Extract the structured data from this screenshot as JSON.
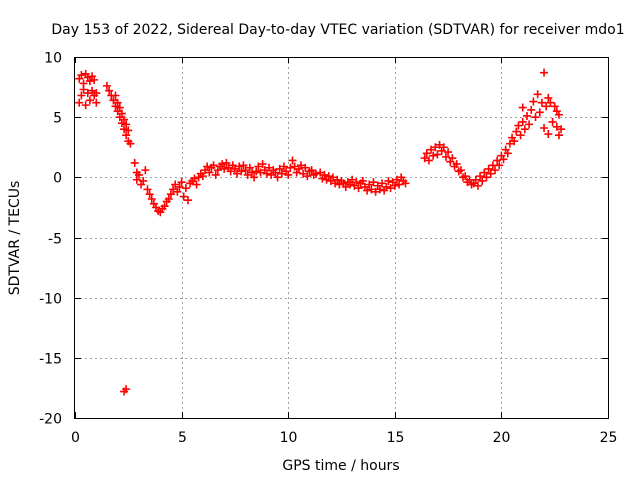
{
  "chart_data": {
    "type": "scatter",
    "title": "Day 153 of 2022, Sidereal Day-to-day VTEC variation (SDTVAR) for receiver mdo1",
    "xlabel": "GPS time / hours",
    "ylabel": "SDTVAR / TECUs",
    "xlim": [
      0,
      25
    ],
    "ylim": [
      -20,
      10
    ],
    "xticks": [
      0,
      5,
      10,
      15,
      20,
      25
    ],
    "yticks": [
      -20,
      -15,
      -10,
      -5,
      0,
      5,
      10
    ],
    "xtick_labels": [
      "0",
      "5",
      "10",
      "15",
      "20",
      "25"
    ],
    "ytick_labels": [
      "-20",
      "-15",
      "-10",
      "-5",
      "0",
      "5",
      "10"
    ],
    "grid": true,
    "marker": "+",
    "color": "#ff0000",
    "series": [
      {
        "name": "SDTVAR",
        "points": [
          [
            0.2,
            8.2
          ],
          [
            0.3,
            8.5
          ],
          [
            0.4,
            7.8
          ],
          [
            0.5,
            8.6
          ],
          [
            0.6,
            8.3
          ],
          [
            0.7,
            8.0
          ],
          [
            0.8,
            8.4
          ],
          [
            0.9,
            8.1
          ],
          [
            0.2,
            6.2
          ],
          [
            0.3,
            6.8
          ],
          [
            0.4,
            7.3
          ],
          [
            0.5,
            6.0
          ],
          [
            0.6,
            7.0
          ],
          [
            0.7,
            6.4
          ],
          [
            0.8,
            7.2
          ],
          [
            0.9,
            6.8
          ],
          [
            1.0,
            7.0
          ],
          [
            1.0,
            6.2
          ],
          [
            1.5,
            7.6
          ],
          [
            1.6,
            7.2
          ],
          [
            1.7,
            6.8
          ],
          [
            1.8,
            6.4
          ],
          [
            1.9,
            5.9
          ],
          [
            1.9,
            6.8
          ],
          [
            2.0,
            5.5
          ],
          [
            2.0,
            6.2
          ],
          [
            2.1,
            5.0
          ],
          [
            2.1,
            5.8
          ],
          [
            2.2,
            4.5
          ],
          [
            2.2,
            5.3
          ],
          [
            2.3,
            4.0
          ],
          [
            2.3,
            4.8
          ],
          [
            2.4,
            3.5
          ],
          [
            2.4,
            4.4
          ],
          [
            2.5,
            3.0
          ],
          [
            2.5,
            3.9
          ],
          [
            2.6,
            2.8
          ],
          [
            2.3,
            -17.8
          ],
          [
            2.4,
            -17.6
          ],
          [
            2.8,
            1.2
          ],
          [
            2.9,
            0.4
          ],
          [
            2.9,
            -0.2
          ],
          [
            3.0,
            0.2
          ],
          [
            3.1,
            -0.6
          ],
          [
            3.2,
            -0.3
          ],
          [
            3.3,
            0.6
          ],
          [
            3.4,
            -1.0
          ],
          [
            3.5,
            -1.4
          ],
          [
            3.6,
            -1.8
          ],
          [
            3.7,
            -2.2
          ],
          [
            3.8,
            -2.5
          ],
          [
            3.9,
            -2.8
          ],
          [
            4.0,
            -2.9
          ],
          [
            4.1,
            -2.6
          ],
          [
            4.2,
            -2.4
          ],
          [
            4.3,
            -2.0
          ],
          [
            4.4,
            -1.8
          ],
          [
            4.5,
            -1.4
          ],
          [
            4.6,
            -1.0
          ],
          [
            4.7,
            -0.6
          ],
          [
            4.8,
            -1.2
          ],
          [
            4.9,
            -0.8
          ],
          [
            5.0,
            -0.4
          ],
          [
            5.1,
            -1.6
          ],
          [
            5.2,
            -0.9
          ],
          [
            5.3,
            -1.9
          ],
          [
            5.4,
            -0.5
          ],
          [
            5.5,
            -0.3
          ],
          [
            5.6,
            -0.1
          ],
          [
            5.7,
            -0.6
          ],
          [
            5.8,
            0.0
          ],
          [
            5.9,
            0.3
          ],
          [
            6.0,
            0.1
          ],
          [
            6.1,
            0.6
          ],
          [
            6.2,
            0.9
          ],
          [
            6.3,
            0.4
          ],
          [
            6.4,
            0.8
          ],
          [
            6.5,
            1.0
          ],
          [
            6.6,
            0.2
          ],
          [
            6.7,
            0.6
          ],
          [
            6.8,
            0.9
          ],
          [
            6.9,
            1.1
          ],
          [
            7.0,
            0.7
          ],
          [
            7.1,
            1.2
          ],
          [
            7.2,
            0.8
          ],
          [
            7.3,
            0.5
          ],
          [
            7.4,
            1.0
          ],
          [
            7.5,
            0.7
          ],
          [
            7.6,
            0.3
          ],
          [
            7.7,
            0.9
          ],
          [
            7.8,
            0.5
          ],
          [
            7.9,
            1.0
          ],
          [
            8.0,
            0.6
          ],
          [
            8.1,
            0.2
          ],
          [
            8.2,
            0.8
          ],
          [
            8.3,
            0.4
          ],
          [
            8.4,
            0.0
          ],
          [
            8.5,
            0.5
          ],
          [
            8.6,
            0.9
          ],
          [
            8.7,
            0.4
          ],
          [
            8.8,
            1.1
          ],
          [
            8.9,
            0.6
          ],
          [
            9.0,
            0.3
          ],
          [
            9.1,
            0.8
          ],
          [
            9.2,
            0.2
          ],
          [
            9.3,
            0.6
          ],
          [
            9.4,
            0.4
          ],
          [
            9.5,
            0.0
          ],
          [
            9.6,
            0.7
          ],
          [
            9.7,
            0.3
          ],
          [
            9.8,
            0.9
          ],
          [
            9.9,
            0.5
          ],
          [
            10.0,
            0.2
          ],
          [
            10.1,
            0.8
          ],
          [
            10.2,
            1.4
          ],
          [
            10.3,
            0.9
          ],
          [
            10.4,
            0.4
          ],
          [
            10.5,
            0.7
          ],
          [
            10.6,
            1.0
          ],
          [
            10.7,
            0.3
          ],
          [
            10.8,
            0.8
          ],
          [
            10.9,
            0.1
          ],
          [
            11.0,
            0.5
          ],
          [
            11.1,
            0.6
          ],
          [
            11.2,
            0.2
          ],
          [
            11.3,
            0.3
          ],
          [
            11.5,
            0.4
          ],
          [
            11.6,
            -0.1
          ],
          [
            11.7,
            0.2
          ],
          [
            11.8,
            -0.2
          ],
          [
            11.9,
            0.1
          ],
          [
            12.0,
            -0.3
          ],
          [
            12.1,
            0.0
          ],
          [
            12.2,
            -0.5
          ],
          [
            12.3,
            -0.2
          ],
          [
            12.4,
            -0.6
          ],
          [
            12.5,
            -0.3
          ],
          [
            12.6,
            -0.5
          ],
          [
            12.7,
            -0.8
          ],
          [
            12.8,
            -0.4
          ],
          [
            12.9,
            -0.6
          ],
          [
            13.0,
            -0.2
          ],
          [
            13.1,
            -0.7
          ],
          [
            13.2,
            -0.4
          ],
          [
            13.3,
            -0.9
          ],
          [
            13.4,
            -0.5
          ],
          [
            13.5,
            -0.3
          ],
          [
            13.6,
            -0.8
          ],
          [
            13.7,
            -1.1
          ],
          [
            13.8,
            -0.6
          ],
          [
            13.9,
            -1.0
          ],
          [
            14.0,
            -0.4
          ],
          [
            14.1,
            -1.2
          ],
          [
            14.2,
            -0.7
          ],
          [
            14.3,
            -1.0
          ],
          [
            14.4,
            -0.5
          ],
          [
            14.5,
            -1.1
          ],
          [
            14.6,
            -0.8
          ],
          [
            14.7,
            -0.3
          ],
          [
            14.8,
            -0.9
          ],
          [
            14.9,
            -0.4
          ],
          [
            15.0,
            -0.7
          ],
          [
            15.1,
            -0.2
          ],
          [
            15.2,
            -0.6
          ],
          [
            15.3,
            0.0
          ],
          [
            15.4,
            -0.3
          ],
          [
            15.5,
            -0.5
          ],
          [
            16.4,
            1.6
          ],
          [
            16.5,
            2.0
          ],
          [
            16.6,
            1.4
          ],
          [
            16.7,
            2.3
          ],
          [
            16.8,
            1.8
          ],
          [
            16.9,
            2.5
          ],
          [
            17.0,
            1.9
          ],
          [
            17.1,
            2.7
          ],
          [
            17.2,
            2.2
          ],
          [
            17.3,
            2.5
          ],
          [
            17.4,
            1.7
          ],
          [
            17.5,
            2.1
          ],
          [
            17.6,
            1.3
          ],
          [
            17.7,
            1.6
          ],
          [
            17.8,
            0.9
          ],
          [
            17.9,
            1.1
          ],
          [
            18.0,
            0.5
          ],
          [
            18.1,
            0.6
          ],
          [
            18.2,
            0.0
          ],
          [
            18.3,
            0.1
          ],
          [
            18.4,
            -0.4
          ],
          [
            18.5,
            -0.2
          ],
          [
            18.6,
            -0.6
          ],
          [
            18.7,
            -0.5
          ],
          [
            18.8,
            -0.2
          ],
          [
            18.9,
            -0.7
          ],
          [
            19.0,
            0.1
          ],
          [
            19.1,
            -0.3
          ],
          [
            19.2,
            0.4
          ],
          [
            19.3,
            0.0
          ],
          [
            19.4,
            0.7
          ],
          [
            19.5,
            0.3
          ],
          [
            19.6,
            1.0
          ],
          [
            19.7,
            0.6
          ],
          [
            19.8,
            1.4
          ],
          [
            19.9,
            1.0
          ],
          [
            20.0,
            1.8
          ],
          [
            20.1,
            1.5
          ],
          [
            20.2,
            2.3
          ],
          [
            20.3,
            2.0
          ],
          [
            20.4,
            2.8
          ],
          [
            20.5,
            3.3
          ],
          [
            20.6,
            3.0
          ],
          [
            20.7,
            3.8
          ],
          [
            20.8,
            4.3
          ],
          [
            20.9,
            3.5
          ],
          [
            21.0,
            4.6
          ],
          [
            21.1,
            4.0
          ],
          [
            21.2,
            5.1
          ],
          [
            21.3,
            4.4
          ],
          [
            21.0,
            5.8
          ],
          [
            21.4,
            5.6
          ],
          [
            21.5,
            6.3
          ],
          [
            21.6,
            5.0
          ],
          [
            21.7,
            6.9
          ],
          [
            21.8,
            5.4
          ],
          [
            21.9,
            6.2
          ],
          [
            22.0,
            8.7
          ],
          [
            22.1,
            5.9
          ],
          [
            22.2,
            6.6
          ],
          [
            22.0,
            4.1
          ],
          [
            22.2,
            3.6
          ],
          [
            22.3,
            6.2
          ],
          [
            22.4,
            4.6
          ],
          [
            22.5,
            5.9
          ],
          [
            22.6,
            4.2
          ],
          [
            22.6,
            5.5
          ],
          [
            22.7,
            3.5
          ],
          [
            22.7,
            5.2
          ],
          [
            22.8,
            4.0
          ]
        ]
      }
    ]
  }
}
